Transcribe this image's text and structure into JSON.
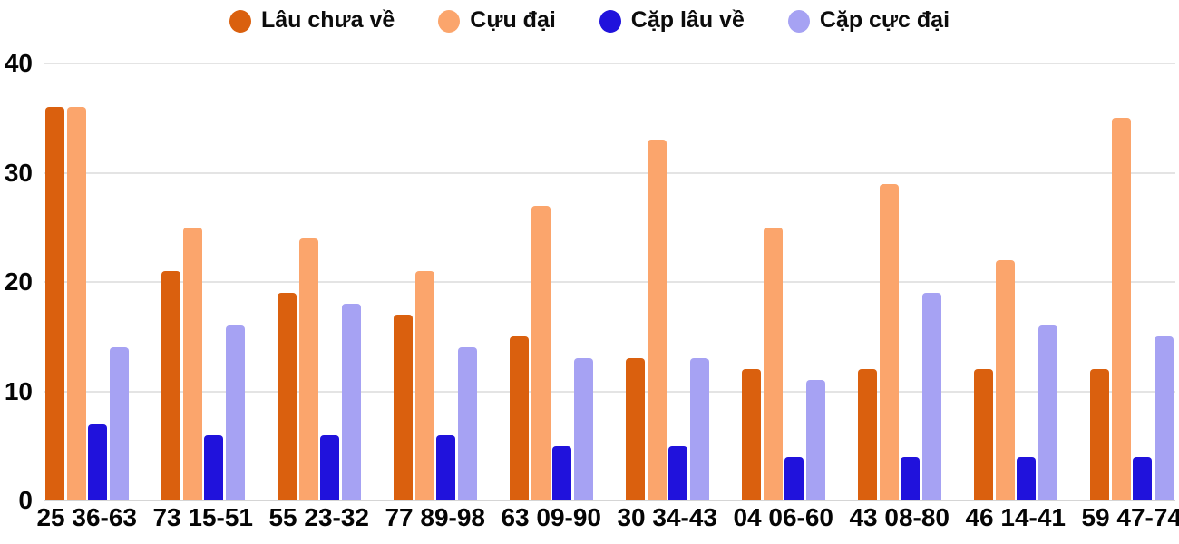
{
  "chart_data": {
    "type": "bar",
    "title": "",
    "xlabel": "",
    "ylabel": "",
    "grid": true,
    "legend_position": "top",
    "ylim": [
      0,
      40
    ],
    "yticks": [
      0,
      10,
      20,
      30,
      40
    ],
    "categories": [
      "25 36-63",
      "73 15-51",
      "55 23-32",
      "77 89-98",
      "63 09-90",
      "30 34-43",
      "04 06-60",
      "43 08-80",
      "46 14-41",
      "59 47-74"
    ],
    "series": [
      {
        "name": "Lâu chưa về",
        "color": "#da600e",
        "values": [
          36,
          21,
          19,
          17,
          15,
          13,
          12,
          12,
          12,
          12
        ]
      },
      {
        "name": "Cựu đại",
        "color": "#fba56c",
        "values": [
          36,
          25,
          24,
          21,
          27,
          33,
          25,
          29,
          22,
          35
        ]
      },
      {
        "name": "Cặp lâu về",
        "color": "#2012dc",
        "values": [
          7,
          6,
          6,
          6,
          5,
          5,
          4,
          4,
          4,
          4
        ]
      },
      {
        "name": "Cặp cực đại",
        "color": "#a6a2f3",
        "values": [
          14,
          16,
          18,
          14,
          13,
          13,
          11,
          19,
          16,
          15
        ]
      }
    ]
  },
  "colors": {
    "background": "#ffffff",
    "gridline": "#e4e4e4",
    "axis_line": "#d5d5d5",
    "text": "#050505"
  }
}
